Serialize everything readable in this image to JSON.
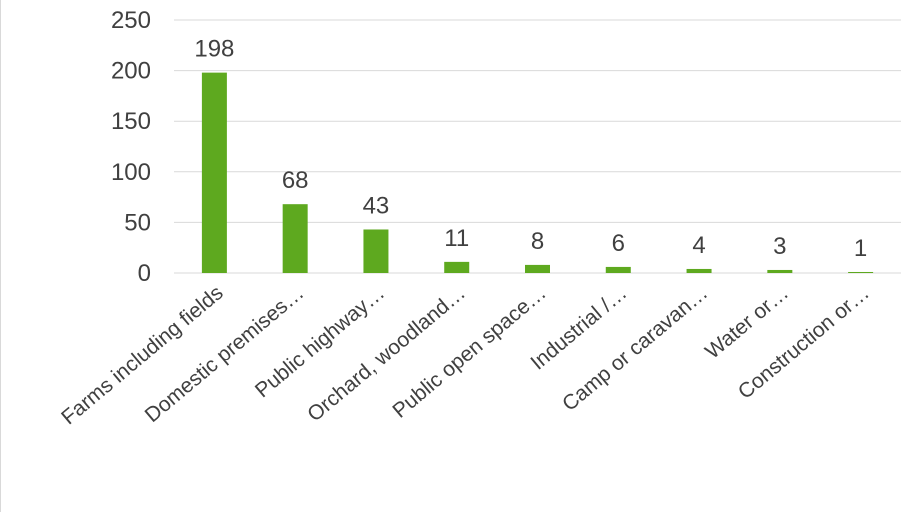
{
  "chart_data": {
    "type": "bar",
    "categories": [
      "Farms including fields",
      "Domestic premises…",
      "Public highway…",
      "Orchard, woodland…",
      "Public open space…",
      "Industrial /…",
      "Camp or caravan…",
      "Water or…",
      "Construction or…"
    ],
    "values": [
      198,
      68,
      43,
      11,
      8,
      6,
      4,
      3,
      1
    ],
    "data_labels": [
      "198",
      "68",
      "43",
      "11",
      "8",
      "6",
      "4",
      "3",
      "1"
    ],
    "yticks": [
      "0",
      "50",
      "100",
      "150",
      "200",
      "250"
    ],
    "ylim": [
      0,
      250
    ],
    "grid": true,
    "legend": "none",
    "colors": {
      "bar": "#5ea91f",
      "grid": "#d9d9d9",
      "text": "#404040"
    }
  }
}
